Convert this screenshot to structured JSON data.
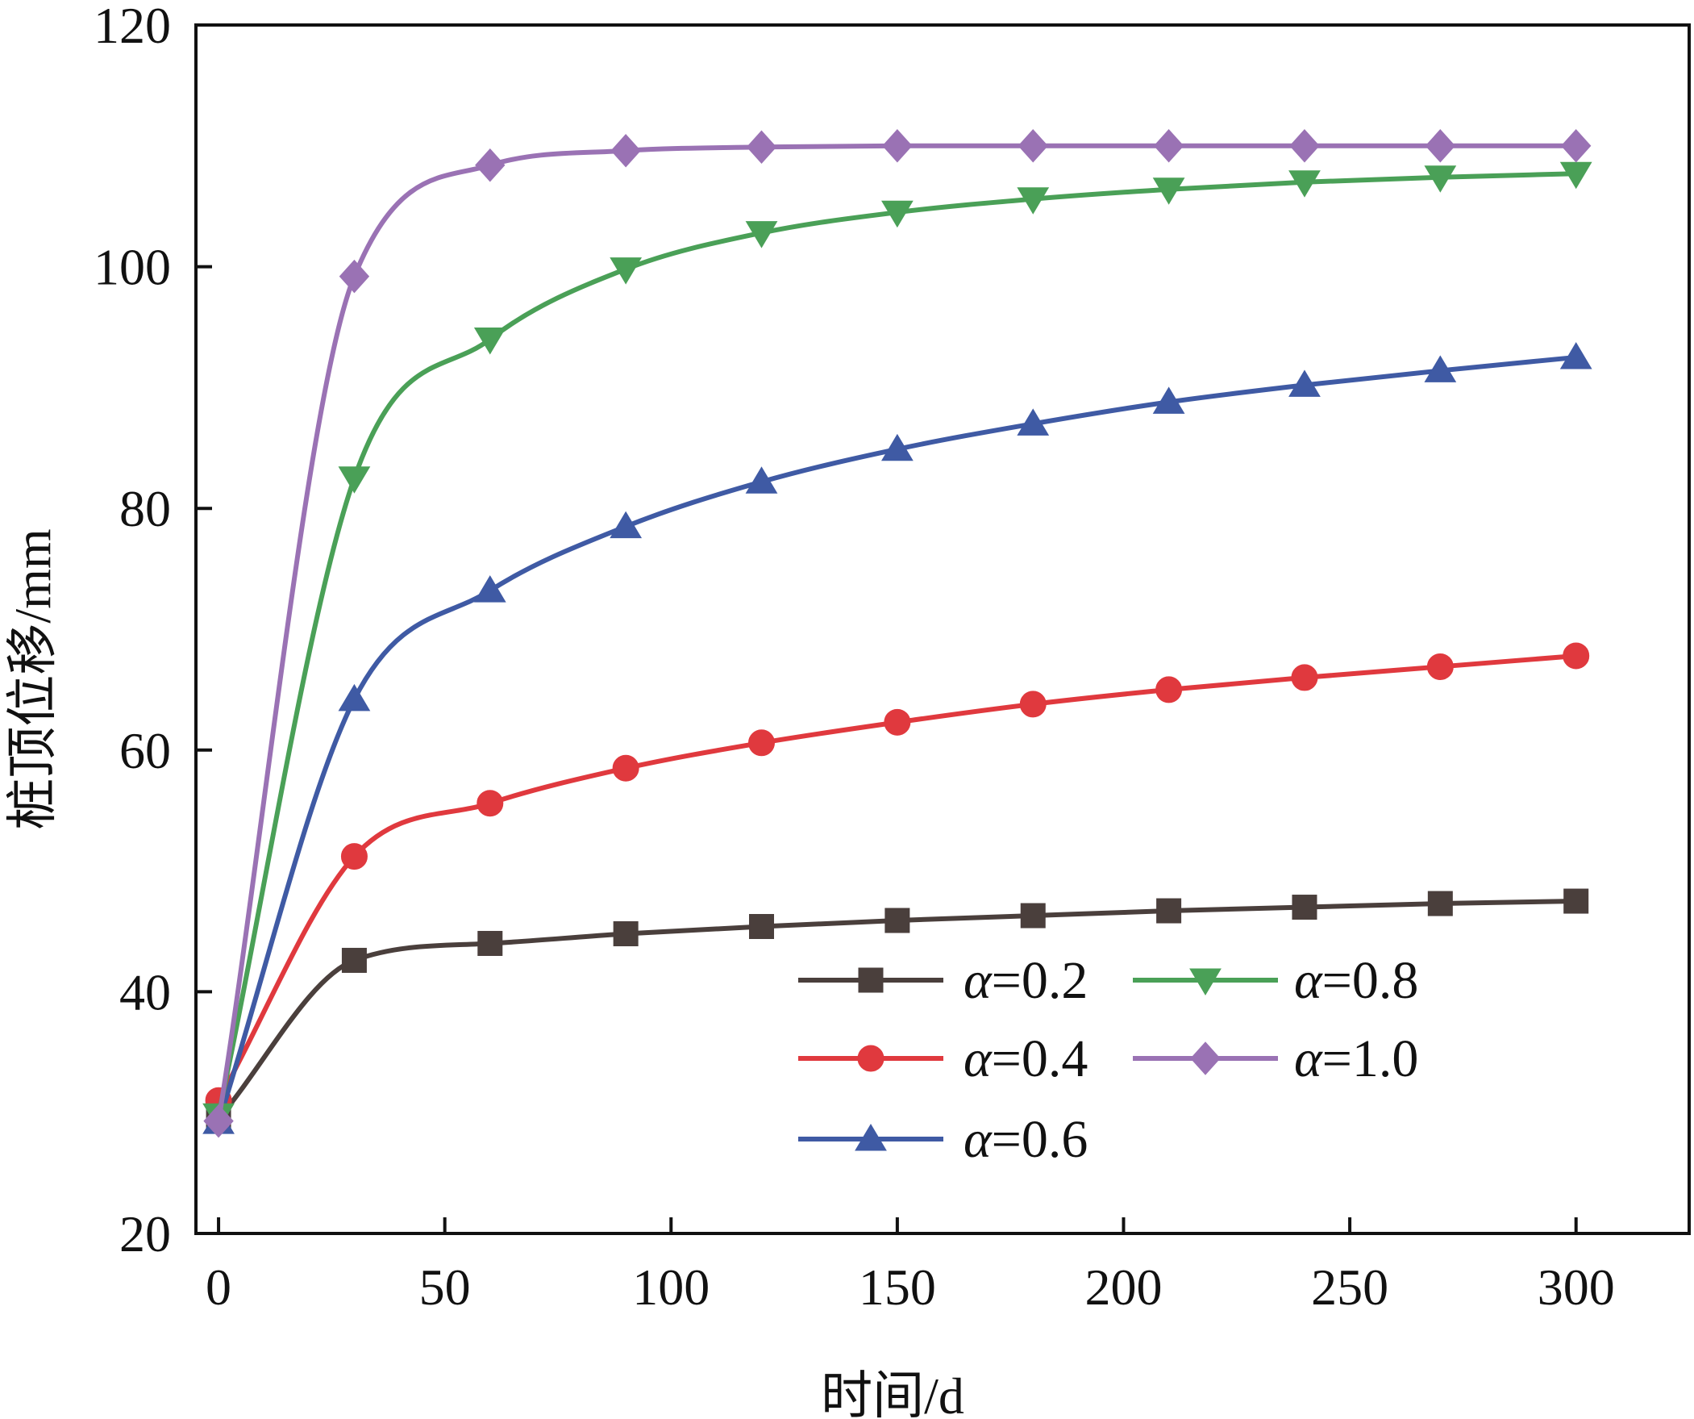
{
  "chart_data": {
    "type": "line",
    "title": "",
    "xlabel": "时间/d",
    "ylabel": "桩顶位移/mm",
    "xlim": [
      -5,
      325
    ],
    "ylim": [
      20,
      120
    ],
    "xticks": [
      0,
      50,
      100,
      150,
      200,
      250,
      300
    ],
    "yticks": [
      20,
      40,
      60,
      80,
      100,
      120
    ],
    "grid": false,
    "legend_position": "bottom-right",
    "x": [
      0,
      30,
      60,
      90,
      120,
      150,
      180,
      210,
      240,
      270,
      300
    ],
    "series": [
      {
        "name": "α=0.2",
        "legend_symbol": "α",
        "legend_value": "=0.2",
        "color": "#4a3f3c",
        "marker": "square",
        "values": [
          29.5,
          42.6,
          44.0,
          44.8,
          45.4,
          45.9,
          46.3,
          46.7,
          47.0,
          47.3,
          47.5
        ]
      },
      {
        "name": "α=0.4",
        "legend_symbol": "α",
        "legend_value": "=0.4",
        "color": "#e0393e",
        "marker": "circle",
        "values": [
          31.0,
          51.2,
          55.6,
          58.5,
          60.6,
          62.3,
          63.8,
          65.0,
          66.0,
          66.9,
          67.8
        ]
      },
      {
        "name": "α=0.6",
        "legend_symbol": "α",
        "legend_value": "=0.6",
        "color": "#3f5aa4",
        "marker": "triangle-up",
        "values": [
          29.2,
          64.2,
          73.2,
          78.5,
          82.2,
          84.9,
          87.0,
          88.8,
          90.2,
          91.4,
          92.5
        ]
      },
      {
        "name": "α=0.8",
        "legend_symbol": "α",
        "legend_value": "=0.8",
        "color": "#4aa057",
        "marker": "triangle-down",
        "values": [
          29.8,
          82.5,
          94.0,
          99.8,
          102.8,
          104.5,
          105.6,
          106.4,
          107.0,
          107.4,
          107.7
        ]
      },
      {
        "name": "α=1.0",
        "legend_symbol": "α",
        "legend_value": "=1.0",
        "color": "#9a72b4",
        "marker": "diamond",
        "values": [
          29.3,
          99.2,
          108.4,
          109.6,
          109.9,
          110.0,
          110.0,
          110.0,
          110.0,
          110.0,
          110.0
        ]
      }
    ]
  }
}
